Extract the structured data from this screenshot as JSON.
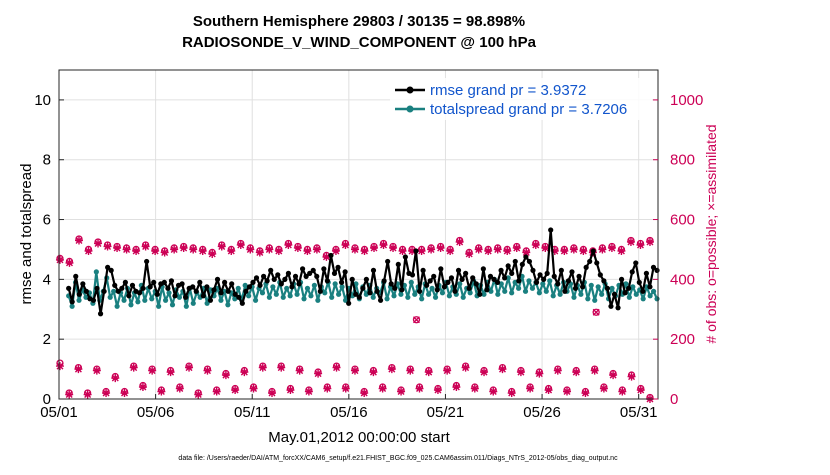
{
  "chart_data": {
    "type": "line",
    "title_line1": "Southern Hemisphere 29803 / 30135 = 98.898%",
    "title_line2": "RADIOSONDE_V_WIND_COMPONENT @ 100 hPa",
    "xlabel": "May.01,2012 00:00:00 start",
    "ylabel": "rmse and totalspread",
    "y2label": "# of obs: o=possible; ×=assimilated",
    "footer": "data file: /Users/raeder/DAI/ATM_forcXX/CAM6_setup/f.e21.FHIST_BGC.f09_025.CAM6assim.011/Diags_NTrS_2012-05/obs_diag_output.nc",
    "xlim": [
      1,
      32
    ],
    "ylim": [
      0,
      11
    ],
    "y2lim": [
      0,
      1100
    ],
    "xticks": [
      1,
      6,
      11,
      16,
      21,
      26,
      31
    ],
    "xtick_labels": [
      "05/01",
      "05/06",
      "05/11",
      "05/16",
      "05/21",
      "05/26",
      "05/31"
    ],
    "yticks": [
      0,
      2,
      4,
      6,
      8,
      10
    ],
    "ytick_labels": [
      "0",
      "2",
      "4",
      "6",
      "8",
      "10"
    ],
    "y2ticks": [
      0,
      200,
      400,
      600,
      800,
      1000
    ],
    "y2tick_labels": [
      "0",
      "200",
      "400",
      "600",
      "800",
      "1000"
    ],
    "legend": [
      "rmse grand pr = 3.9372",
      "totalspread grand pr = 3.7206"
    ],
    "legend_location": "top-right",
    "grid": true,
    "colors": {
      "rmse": "#000000",
      "totalspread": "#1a8080",
      "obs": "#cc0055",
      "legend_text": "#1155cc"
    },
    "series": [
      {
        "name": "rmse",
        "values": [
          3.7,
          3.25,
          4.1,
          3.5,
          3.85,
          3.6,
          3.35,
          3.3,
          3.7,
          2.85,
          3.6,
          4.4,
          4.3,
          3.8,
          3.6,
          3.7,
          3.9,
          3.45,
          3.8,
          3.6,
          3.55,
          3.7,
          4.6,
          3.75,
          3.9,
          3.5,
          3.85,
          3.9,
          3.7,
          3.95,
          3.45,
          3.8,
          3.85,
          3.4,
          3.7,
          3.75,
          3.6,
          3.9,
          3.45,
          3.75,
          3.3,
          3.65,
          4.0,
          3.55,
          3.9,
          3.6,
          3.85,
          3.5,
          3.4,
          3.2,
          3.6,
          3.75,
          3.9,
          4.05,
          3.8,
          4.1,
          3.95,
          4.3,
          4.0,
          4.15,
          3.85,
          4.0,
          4.2,
          3.75,
          4.1,
          3.85,
          4.35,
          4.1,
          4.2,
          4.3,
          4.1,
          3.6,
          4.35,
          3.95,
          4.8,
          4.2,
          4.4,
          3.9,
          4.25,
          3.2,
          4.0,
          3.5,
          3.4,
          3.7,
          4.0,
          3.55,
          4.3,
          3.6,
          3.3,
          3.95,
          4.6,
          3.85,
          3.7,
          4.5,
          3.65,
          4.75,
          4.2,
          4.15,
          4.95,
          3.6,
          4.3,
          3.8,
          3.95,
          4.1,
          3.65,
          4.35,
          3.75,
          3.9,
          4.05,
          3.6,
          4.3,
          4.0,
          4.2,
          3.7,
          4.05,
          3.85,
          3.5,
          4.35,
          3.65,
          4.1,
          4.0,
          3.9,
          4.3,
          4.05,
          4.45,
          4.2,
          4.6,
          3.95,
          4.5,
          4.75,
          4.6,
          4.3,
          3.9,
          4.15,
          4.0,
          4.2,
          5.65,
          4.1,
          3.85,
          4.3,
          3.6,
          3.95,
          4.25,
          3.7,
          4.1,
          3.75,
          4.4,
          4.6,
          4.95,
          4.55,
          4.15,
          3.95,
          3.7,
          3.1,
          3.5,
          3.05,
          4.0,
          3.55,
          3.7,
          4.25,
          4.55,
          3.9,
          3.6,
          4.2,
          3.75,
          4.4,
          4.3
        ]
      },
      {
        "name": "totalspread",
        "values": [
          3.45,
          3.1,
          3.9,
          3.3,
          3.65,
          3.4,
          3.55,
          3.2,
          4.25,
          3.3,
          3.6,
          4.05,
          3.4,
          3.6,
          3.1,
          3.55,
          3.3,
          3.7,
          3.15,
          3.55,
          3.25,
          3.8,
          3.3,
          3.7,
          3.35,
          3.6,
          3.1,
          3.75,
          3.3,
          3.55,
          3.15,
          3.65,
          3.4,
          3.6,
          3.1,
          3.7,
          3.2,
          3.55,
          3.4,
          3.7,
          3.2,
          3.65,
          3.45,
          3.7,
          3.3,
          3.6,
          3.15,
          3.55,
          3.35,
          3.7,
          3.3,
          3.8,
          3.45,
          3.75,
          3.3,
          3.7,
          3.55,
          3.85,
          3.4,
          3.75,
          3.5,
          3.9,
          3.4,
          3.7,
          3.45,
          3.85,
          3.5,
          3.9,
          3.35,
          3.7,
          3.45,
          3.8,
          3.3,
          3.75,
          3.55,
          3.9,
          3.4,
          3.85,
          3.5,
          3.75,
          3.3,
          3.7,
          3.45,
          3.85,
          3.35,
          3.75,
          3.5,
          3.8,
          3.4,
          3.7,
          3.55,
          3.9,
          3.35,
          3.75,
          3.45,
          3.85,
          3.5,
          3.8,
          3.4,
          3.9,
          3.5,
          3.75,
          3.35,
          3.85,
          3.5,
          3.7,
          3.4,
          3.8,
          3.55,
          3.9,
          3.45,
          3.75,
          3.5,
          3.85,
          3.4,
          3.7,
          3.55,
          3.95,
          3.45,
          3.8,
          3.5,
          3.9,
          3.6,
          4.0,
          3.5,
          3.85,
          3.6,
          4.05,
          3.55,
          3.9,
          3.7,
          4.1,
          3.6,
          3.95,
          3.7,
          3.9,
          3.55,
          3.85,
          3.6,
          3.95,
          3.45,
          3.8,
          3.5,
          3.9,
          3.6,
          3.85,
          3.4,
          3.8,
          3.5,
          3.9,
          3.35,
          3.8,
          3.3,
          3.75,
          3.5,
          3.85,
          3.35,
          3.7,
          3.45,
          3.8,
          3.5,
          3.85,
          3.4,
          3.75,
          3.5,
          3.65,
          3.35,
          3.75,
          3.45,
          3.6,
          3.35
        ]
      }
    ],
    "obs_possible_high": [
      470,
      460,
      535,
      500,
      525,
      515,
      510,
      505,
      500,
      515,
      500,
      495,
      505,
      510,
      505,
      500,
      490,
      515,
      500,
      520,
      505,
      495,
      505,
      500,
      520,
      510,
      500,
      505,
      480,
      500,
      520,
      505,
      500,
      510,
      520,
      510,
      500,
      500,
      500,
      505,
      510,
      500,
      530,
      490,
      505,
      500,
      505,
      500,
      510,
      495,
      520,
      510,
      500,
      500,
      505,
      500,
      495,
      505,
      510,
      500,
      530,
      520,
      530
    ],
    "obs_assimilated_high": [
      465,
      455,
      530,
      495,
      520,
      510,
      505,
      500,
      495,
      510,
      495,
      490,
      500,
      505,
      500,
      495,
      485,
      510,
      495,
      515,
      500,
      490,
      500,
      495,
      515,
      505,
      495,
      500,
      475,
      495,
      515,
      500,
      495,
      505,
      515,
      505,
      495,
      495,
      495,
      500,
      505,
      495,
      525,
      485,
      500,
      495,
      500,
      495,
      505,
      490,
      515,
      505,
      495,
      495,
      500,
      495,
      490,
      500,
      505,
      495,
      525,
      515,
      525
    ],
    "obs_low_values": [
      120,
      20,
      105,
      20,
      100,
      25,
      75,
      25,
      110,
      45,
      100,
      30,
      95,
      40,
      110,
      20,
      100,
      30,
      85,
      35,
      95,
      40,
      110,
      25,
      110,
      35,
      100,
      30,
      90,
      40,
      110,
      40,
      100,
      25,
      95,
      40,
      105,
      30,
      100,
      40,
      95,
      35,
      100,
      45,
      110,
      40,
      95,
      30,
      105,
      25,
      95,
      40,
      90,
      35,
      100,
      30,
      95,
      25,
      100,
      40,
      85,
      30,
      80,
      35,
      5
    ],
    "obs_low_series_2": [
      110,
      15,
      100,
      15,
      95,
      20,
      70,
      20,
      105,
      40,
      95,
      25,
      90,
      35,
      105,
      15,
      95,
      25,
      80,
      30,
      90,
      35,
      105,
      20,
      105,
      30,
      95,
      25,
      85,
      35,
      105,
      35,
      95,
      20,
      90,
      35,
      100,
      25,
      95,
      35,
      90,
      30,
      95,
      40,
      105,
      35,
      90,
      25,
      100,
      20,
      90,
      35,
      85,
      30,
      95,
      25,
      90,
      20,
      95,
      35,
      80,
      25,
      75,
      30,
      0
    ],
    "obs_low_values_outliers": [
      265,
      290
    ]
  }
}
